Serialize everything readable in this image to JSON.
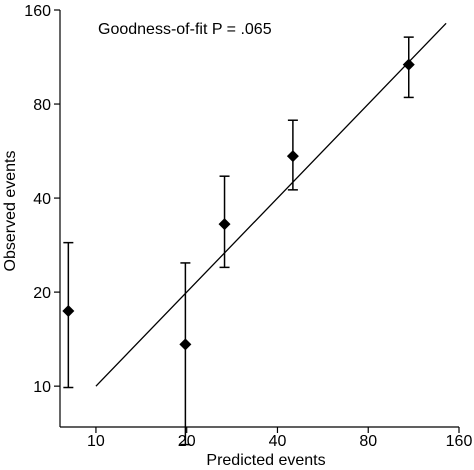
{
  "chart_data": {
    "type": "scatter",
    "annotation": "Goodness-of-fit P = .065",
    "xlabel": "Predicted events",
    "ylabel": "Observed events",
    "x_scale": "log",
    "y_scale": "log",
    "xlim": [
      7.6,
      160
    ],
    "ylim": [
      7.4,
      160
    ],
    "x_ticks": [
      10,
      20,
      40,
      80,
      160
    ],
    "x_tick_labels": [
      "10",
      "20",
      "40",
      "80",
      "160"
    ],
    "y_ticks": [
      10,
      20,
      40,
      80,
      160
    ],
    "y_tick_labels": [
      "10",
      "20",
      "40",
      "80",
      "160"
    ],
    "grid": false,
    "points": [
      {
        "x": 8.1,
        "y": 17.4,
        "ci_low": 9.9,
        "ci_high": 28.8
      },
      {
        "x": 19.8,
        "y": 13.6,
        "ci_low": 6.5,
        "ci_high": 24.8
      },
      {
        "x": 26.7,
        "y": 33.0,
        "ci_low": 24.0,
        "ci_high": 47.0
      },
      {
        "x": 45.0,
        "y": 54.5,
        "ci_low": 42.5,
        "ci_high": 71.0
      },
      {
        "x": 109.0,
        "y": 107.0,
        "ci_low": 84.0,
        "ci_high": 131.0
      }
    ],
    "reference_line": {
      "x": [
        10,
        145
      ],
      "y": [
        10,
        145
      ]
    }
  }
}
